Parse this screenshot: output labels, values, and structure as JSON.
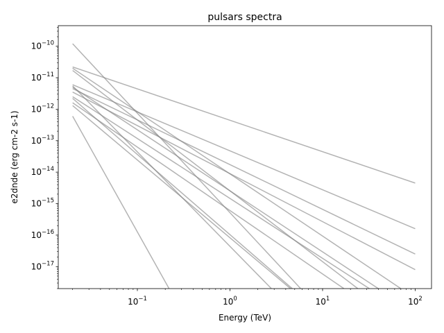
{
  "chart_data": {
    "type": "line",
    "title": "pulsars spectra",
    "xlabel": "Energy (TeV)",
    "ylabel": "e2dnde (erg cm-2 s-1)",
    "xscale": "log",
    "yscale": "log",
    "xlim": [
      0.014,
      150
    ],
    "ylim": [
      2e-18,
      4.5e-10
    ],
    "grid": false,
    "line_color": "#808080",
    "line_opacity": 0.6,
    "x_ticks": [
      {
        "value": 0.1,
        "base": "10",
        "exp": "−1"
      },
      {
        "value": 1,
        "base": "10",
        "exp": "0"
      },
      {
        "value": 10,
        "base": "10",
        "exp": "1"
      },
      {
        "value": 100,
        "base": "10",
        "exp": "2"
      }
    ],
    "y_ticks": [
      {
        "value": 1e-17,
        "base": "10",
        "exp": "−17"
      },
      {
        "value": 1e-16,
        "base": "10",
        "exp": "−16"
      },
      {
        "value": 1e-15,
        "base": "10",
        "exp": "−15"
      },
      {
        "value": 1e-14,
        "base": "10",
        "exp": "−14"
      },
      {
        "value": 1e-13,
        "base": "10",
        "exp": "−13"
      },
      {
        "value": 1e-12,
        "base": "10",
        "exp": "−12"
      },
      {
        "value": 1e-11,
        "base": "10",
        "exp": "−11"
      },
      {
        "value": 1e-10,
        "base": "10",
        "exp": "−10"
      }
    ],
    "series": [
      {
        "x": [
          0.02,
          100
        ],
        "y": [
          2.2e-11,
          4.5e-15
        ]
      },
      {
        "x": [
          0.02,
          100
        ],
        "y": [
          6e-12,
          1.6e-16
        ]
      },
      {
        "x": [
          0.02,
          100
        ],
        "y": [
          4.5e-12,
          2.5e-17
        ]
      },
      {
        "x": [
          0.02,
          100
        ],
        "y": [
          3.5e-12,
          8e-18
        ]
      },
      {
        "x": [
          0.02,
          70
        ],
        "y": [
          2e-11,
          2e-18
        ]
      },
      {
        "x": [
          0.02,
          40
        ],
        "y": [
          5e-12,
          2e-18
        ]
      },
      {
        "x": [
          0.02,
          32
        ],
        "y": [
          2.5e-12,
          2e-18
        ]
      },
      {
        "x": [
          0.02,
          24
        ],
        "y": [
          1.7e-11,
          2e-18
        ]
      },
      {
        "x": [
          0.02,
          17
        ],
        "y": [
          1.6e-12,
          2e-18
        ]
      },
      {
        "x": [
          0.02,
          5.8
        ],
        "y": [
          1.2e-10,
          2e-18
        ]
      },
      {
        "x": [
          0.02,
          4.7
        ],
        "y": [
          2.2e-12,
          2e-18
        ]
      },
      {
        "x": [
          0.02,
          4.5
        ],
        "y": [
          1.3e-12,
          2e-18
        ]
      },
      {
        "x": [
          0.02,
          2.8
        ],
        "y": [
          5.5e-12,
          2e-18
        ]
      },
      {
        "x": [
          0.02,
          0.22
        ],
        "y": [
          6e-13,
          2e-18
        ]
      }
    ]
  }
}
